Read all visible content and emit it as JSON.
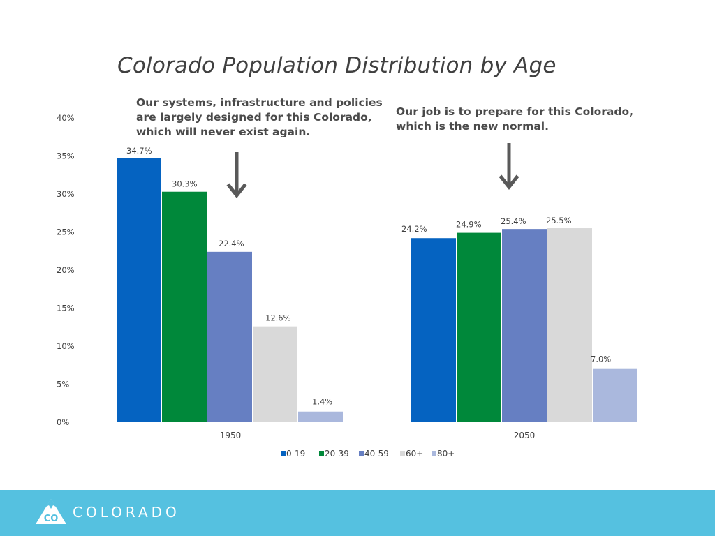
{
  "title": "Colorado Population Distribution by Age",
  "callouts": {
    "left": "Our systems, infrastructure and policies\nare largely designed for this Colorado,\nwhich will never exist again.",
    "right": "Our job is to prepare for this Colorado,\nwhich is the new normal."
  },
  "footer": {
    "logo_text": "COLORADO",
    "logo_badge": "CO"
  },
  "colors": {
    "0-19": "#0563c1",
    "20-39": "#00883a",
    "40-59": "#667fc2",
    "60+": "#d9d9d9",
    "80+": "#aab8dd",
    "footer_bg": "#55c1e0",
    "arrow": "#595959"
  },
  "chart_data": {
    "type": "bar",
    "title": "Colorado Population Distribution by Age",
    "categories": [
      "1950",
      "2050"
    ],
    "series": [
      {
        "name": "0-19",
        "values": [
          34.7,
          24.2
        ],
        "labels": [
          "34.7%",
          "24.2%"
        ],
        "color": "#0563c1"
      },
      {
        "name": "20-39",
        "values": [
          30.3,
          24.9
        ],
        "labels": [
          "30.3%",
          "24.9%"
        ],
        "color": "#00883a"
      },
      {
        "name": "40-59",
        "values": [
          22.4,
          25.4
        ],
        "labels": [
          "22.4%",
          "25.4%"
        ],
        "color": "#667fc2"
      },
      {
        "name": "60+",
        "values": [
          12.6,
          25.5
        ],
        "labels": [
          "12.6%",
          "25.5%"
        ],
        "color": "#d9d9d9"
      },
      {
        "name": "80+",
        "values": [
          1.4,
          7.0
        ],
        "labels": [
          "1.4%",
          "7.0%"
        ],
        "color": "#aab8dd"
      }
    ],
    "yticks": [
      "0%",
      "5%",
      "10%",
      "15%",
      "20%",
      "25%",
      "30%",
      "35%",
      "40%"
    ],
    "ylim": [
      0,
      40
    ],
    "grid": false,
    "legend": "bottom",
    "xlabel": "",
    "ylabel": ""
  }
}
